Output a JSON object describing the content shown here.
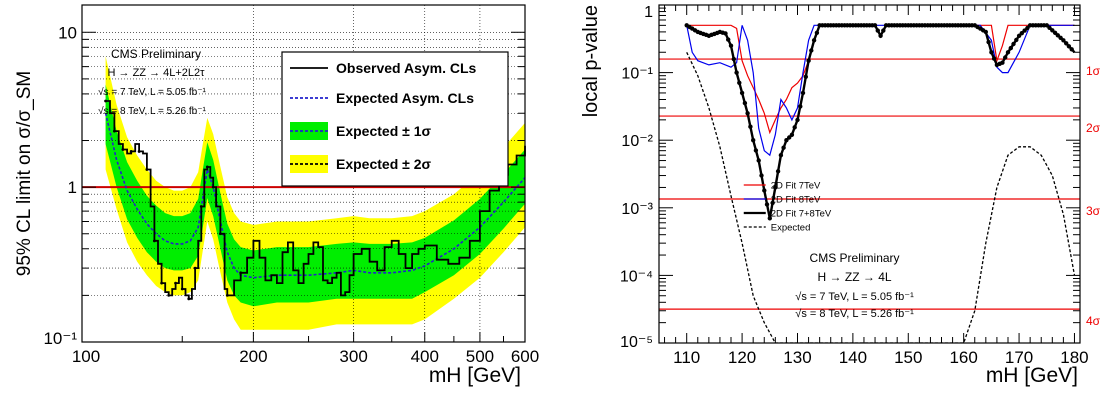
{
  "chart_data": [
    {
      "type": "line",
      "ylabel": "95% CL limit on σ/σ_SM",
      "xlabel": "m_H [GeV]",
      "xscale": "log",
      "yscale": "log",
      "xlim": [
        100,
        600
      ],
      "ylim": [
        0.1,
        15
      ],
      "grid": true,
      "x_ticks": [
        100,
        200,
        300,
        400,
        500,
        600
      ],
      "x_tick_labels": [
        "100",
        "200",
        "300",
        "400",
        "500",
        "600"
      ],
      "y_ticks": [
        0.1,
        1,
        10
      ],
      "y_tick_labels": [
        "10⁻¹",
        "1",
        "10"
      ],
      "reference_line": {
        "y": 1,
        "color": "#cc0000"
      },
      "annotation": {
        "lines": [
          "CMS Preliminary",
          "H → ZZ → 4L+2L2τ",
          "√s = 7 TeV, L = 5.05 fb⁻¹",
          "√s = 8 TeV, L = 5.26 fb⁻¹"
        ]
      },
      "legend": {
        "position": "top-right",
        "entries": [
          "Observed Asym. CLs",
          "Expected Asym. CLs",
          "Expected ± 1σ",
          "Expected ± 2σ"
        ]
      },
      "series": [
        {
          "name": "Observed Asym. CLs",
          "color": "#000000",
          "x": [
            110,
            112,
            114,
            116,
            118,
            120,
            122,
            124,
            126,
            128,
            130,
            132,
            134,
            136,
            138,
            140,
            142,
            144,
            146,
            148,
            150,
            152,
            154,
            156,
            158,
            160,
            162,
            164,
            166,
            168,
            170,
            172,
            175,
            178,
            180,
            185,
            190,
            195,
            200,
            205,
            210,
            215,
            220,
            225,
            230,
            235,
            240,
            245,
            250,
            255,
            260,
            265,
            270,
            275,
            280,
            285,
            290,
            295,
            300,
            310,
            320,
            330,
            340,
            350,
            360,
            370,
            380,
            390,
            400,
            420,
            440,
            460,
            480,
            500,
            520,
            540,
            560,
            580,
            600
          ],
          "y": [
            3.6,
            3.0,
            2.3,
            1.9,
            1.75,
            1.65,
            1.7,
            1.9,
            1.7,
            1.65,
            1.3,
            0.75,
            0.45,
            0.32,
            0.24,
            0.21,
            0.2,
            0.22,
            0.24,
            0.26,
            0.22,
            0.2,
            0.19,
            0.22,
            0.3,
            0.45,
            0.75,
            1.3,
            1.35,
            1.15,
            1.0,
            0.75,
            0.5,
            0.22,
            0.2,
            0.25,
            0.28,
            0.35,
            0.45,
            0.35,
            0.25,
            0.27,
            0.24,
            0.38,
            0.44,
            0.29,
            0.24,
            0.32,
            0.37,
            0.44,
            0.41,
            0.25,
            0.24,
            0.26,
            0.28,
            0.2,
            0.21,
            0.27,
            0.37,
            0.4,
            0.33,
            0.29,
            0.41,
            0.45,
            0.37,
            0.3,
            0.37,
            0.4,
            0.42,
            0.34,
            0.32,
            0.35,
            0.45,
            0.7,
            0.95,
            1.2,
            1.4,
            1.6,
            1.85
          ]
        },
        {
          "name": "Expected Asym. CLs",
          "color": "#2222cc",
          "x": [
            110,
            115,
            120,
            125,
            130,
            135,
            140,
            145,
            150,
            155,
            160,
            163,
            166,
            170,
            175,
            180,
            185,
            190,
            200,
            220,
            250,
            280,
            300,
            320,
            350,
            380,
            400,
            450,
            500,
            550,
            600
          ],
          "y": [
            3.0,
            1.5,
            0.95,
            0.72,
            0.58,
            0.5,
            0.45,
            0.43,
            0.43,
            0.45,
            0.55,
            0.85,
            1.3,
            1.0,
            0.6,
            0.38,
            0.3,
            0.27,
            0.26,
            0.27,
            0.27,
            0.28,
            0.29,
            0.28,
            0.28,
            0.29,
            0.31,
            0.4,
            0.55,
            0.8,
            1.15
          ]
        },
        {
          "name": "Expected ± 1σ",
          "color": "#00ee00",
          "x": [
            110,
            115,
            120,
            125,
            130,
            135,
            140,
            145,
            150,
            155,
            160,
            163,
            166,
            170,
            175,
            180,
            185,
            190,
            200,
            220,
            250,
            280,
            300,
            320,
            350,
            380,
            400,
            450,
            500,
            550,
            600
          ],
          "lower": [
            1.9,
            1.0,
            0.62,
            0.47,
            0.38,
            0.33,
            0.3,
            0.29,
            0.29,
            0.3,
            0.36,
            0.55,
            0.85,
            0.65,
            0.4,
            0.25,
            0.2,
            0.18,
            0.17,
            0.18,
            0.18,
            0.19,
            0.19,
            0.19,
            0.19,
            0.19,
            0.21,
            0.27,
            0.37,
            0.54,
            0.78
          ],
          "upper": [
            4.6,
            2.3,
            1.45,
            1.1,
            0.88,
            0.76,
            0.68,
            0.65,
            0.65,
            0.68,
            0.84,
            1.3,
            1.95,
            1.5,
            0.91,
            0.58,
            0.46,
            0.41,
            0.39,
            0.41,
            0.41,
            0.43,
            0.44,
            0.43,
            0.43,
            0.44,
            0.47,
            0.61,
            0.84,
            1.22,
            1.75
          ]
        },
        {
          "name": "Expected ± 2σ",
          "color": "#ffff00",
          "x": [
            110,
            115,
            120,
            125,
            130,
            135,
            140,
            145,
            150,
            155,
            160,
            163,
            166,
            170,
            175,
            180,
            185,
            190,
            200,
            220,
            250,
            280,
            300,
            320,
            350,
            380,
            400,
            450,
            500,
            550,
            600
          ],
          "lower": [
            1.3,
            0.72,
            0.44,
            0.33,
            0.27,
            0.23,
            0.21,
            0.2,
            0.2,
            0.21,
            0.25,
            0.39,
            0.6,
            0.46,
            0.28,
            0.18,
            0.14,
            0.12,
            0.12,
            0.12,
            0.12,
            0.13,
            0.13,
            0.13,
            0.13,
            0.13,
            0.14,
            0.19,
            0.26,
            0.38,
            0.55
          ],
          "upper": [
            7.0,
            3.4,
            2.1,
            1.6,
            1.3,
            1.1,
            1.0,
            0.95,
            0.95,
            1.0,
            1.25,
            1.9,
            2.8,
            2.2,
            1.35,
            0.86,
            0.68,
            0.6,
            0.57,
            0.6,
            0.6,
            0.63,
            0.65,
            0.63,
            0.63,
            0.65,
            0.7,
            0.9,
            1.25,
            1.8,
            2.6
          ]
        }
      ]
    },
    {
      "type": "line",
      "ylabel": "local p-value",
      "xlabel": "m_H [GeV]",
      "xscale": "linear",
      "yscale": "log",
      "xlim": [
        105,
        181
      ],
      "ylim": [
        1e-05,
        1
      ],
      "x_ticks": [
        110,
        120,
        130,
        140,
        150,
        160,
        170,
        180
      ],
      "x_tick_labels": [
        "110",
        "120",
        "130",
        "140",
        "150",
        "160",
        "170",
        "180"
      ],
      "y_ticks": [
        1e-05,
        0.0001,
        0.001,
        0.01,
        0.1,
        1
      ],
      "y_tick_labels": [
        "10⁻⁵",
        "10⁻⁴",
        "10⁻³",
        "10⁻²",
        "10⁻¹",
        "1"
      ],
      "sigma_lines": [
        {
          "p": 0.1587,
          "label": "1σ"
        },
        {
          "p": 0.02275,
          "label": "2σ"
        },
        {
          "p": 0.00135,
          "label": "3σ"
        },
        {
          "p": 3.17e-05,
          "label": "4σ"
        }
      ],
      "annotation": {
        "lines": [
          "CMS Preliminary",
          "H → ZZ → 4L",
          "√s = 7 TeV, L = 5.05 fb⁻¹",
          "√s = 8 TeV, L = 5.26 fb⁻¹"
        ]
      },
      "legend": {
        "position": "center",
        "entries": [
          "2D Fit 7TeV",
          "2D Fit 8TeV",
          "2D Fit 7+8TeV",
          "Expected"
        ]
      },
      "series": [
        {
          "name": "2D Fit 7TeV",
          "color": "#ee0000",
          "x": [
            110,
            112,
            114,
            116,
            118,
            119,
            120,
            121,
            122,
            123,
            124,
            125,
            126,
            127,
            128,
            129,
            130,
            131,
            132,
            133,
            134,
            135,
            136,
            140,
            142,
            144,
            145,
            146,
            147,
            148,
            150,
            152,
            155,
            160,
            163,
            164,
            165,
            166,
            167,
            168,
            170,
            172,
            175,
            180
          ],
          "y": [
            0.5,
            0.5,
            0.5,
            0.5,
            0.5,
            0.45,
            0.15,
            0.09,
            0.06,
            0.04,
            0.025,
            0.013,
            0.02,
            0.03,
            0.04,
            0.06,
            0.07,
            0.09,
            0.15,
            0.3,
            0.5,
            0.5,
            0.5,
            0.5,
            0.5,
            0.5,
            0.35,
            0.5,
            0.5,
            0.5,
            0.5,
            0.5,
            0.5,
            0.5,
            0.5,
            0.5,
            0.5,
            0.15,
            0.25,
            0.5,
            0.5,
            0.5,
            0.5,
            0.5
          ]
        },
        {
          "name": "2D Fit 8TeV",
          "color": "#0000ee",
          "x": [
            110,
            111,
            112,
            114,
            116,
            118,
            119,
            120,
            121,
            122,
            123,
            124,
            125,
            126,
            127,
            128,
            129,
            130,
            131,
            132,
            133,
            134,
            136,
            140,
            145,
            150,
            155,
            160,
            163,
            165,
            166,
            167,
            168,
            170,
            172,
            175,
            180
          ],
          "y": [
            0.5,
            0.2,
            0.15,
            0.13,
            0.14,
            0.12,
            0.14,
            0.5,
            0.3,
            0.1,
            0.015,
            0.007,
            0.006,
            0.012,
            0.04,
            0.03,
            0.02,
            0.03,
            0.1,
            0.3,
            0.5,
            0.5,
            0.5,
            0.5,
            0.5,
            0.5,
            0.5,
            0.5,
            0.5,
            0.3,
            0.12,
            0.1,
            0.1,
            0.2,
            0.5,
            0.5,
            0.5
          ]
        },
        {
          "name": "2D Fit 7+8TeV",
          "color": "#000000",
          "x": [
            110,
            112,
            114,
            116,
            117,
            118,
            119,
            120,
            121,
            122,
            123,
            124,
            125,
            126,
            127,
            128,
            129,
            130,
            131,
            132,
            133,
            134,
            135,
            140,
            144,
            145,
            146,
            148,
            150,
            155,
            160,
            162,
            164,
            165,
            166,
            167,
            168,
            170,
            172,
            175,
            178,
            180
          ],
          "y": [
            0.5,
            0.4,
            0.35,
            0.4,
            0.38,
            0.25,
            0.1,
            0.05,
            0.025,
            0.01,
            0.005,
            0.0018,
            0.0007,
            0.002,
            0.006,
            0.01,
            0.012,
            0.02,
            0.05,
            0.15,
            0.3,
            0.5,
            0.5,
            0.5,
            0.5,
            0.35,
            0.5,
            0.5,
            0.5,
            0.5,
            0.5,
            0.5,
            0.4,
            0.2,
            0.13,
            0.14,
            0.2,
            0.35,
            0.5,
            0.5,
            0.3,
            0.2
          ]
        },
        {
          "name": "Expected",
          "color": "#000000",
          "x": [
            110,
            112,
            114,
            116,
            118,
            120,
            122,
            124,
            126,
            128,
            160,
            162,
            164,
            166,
            168,
            170,
            172,
            174,
            176,
            178,
            180
          ],
          "y": [
            0.2,
            0.09,
            0.03,
            0.008,
            0.0015,
            0.0003,
            5e-05,
            2e-05,
            1e-05,
            1e-05,
            1e-05,
            3e-05,
            0.0003,
            0.002,
            0.006,
            0.008,
            0.008,
            0.006,
            0.003,
            0.0008,
            0.0001
          ]
        }
      ]
    }
  ]
}
